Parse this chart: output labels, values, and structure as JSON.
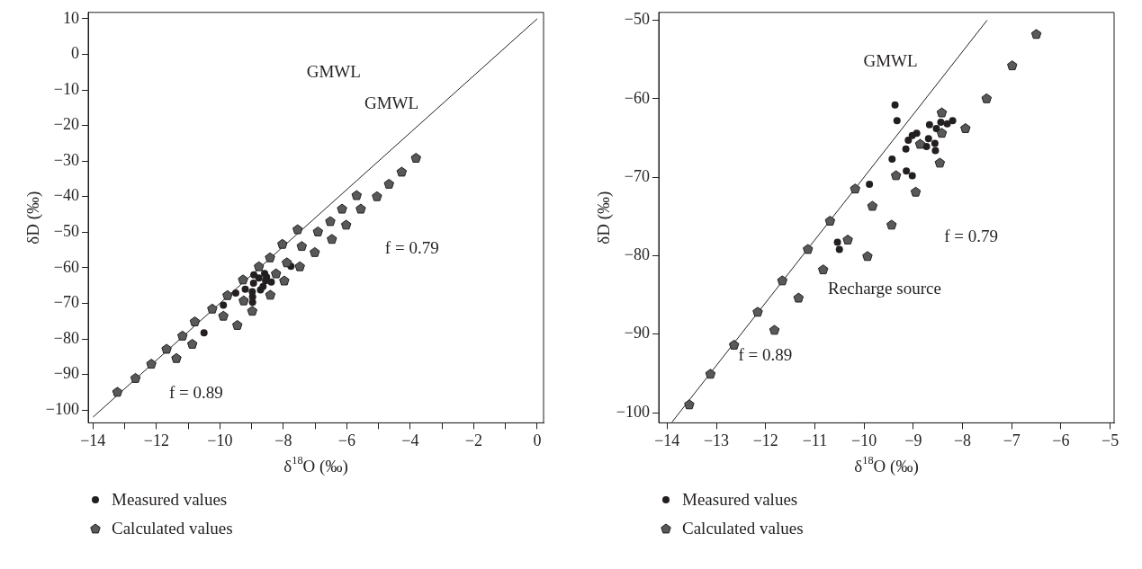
{
  "chart_data": [
    {
      "type": "scatter",
      "xlabel": "δ$^{18}$O (‰)",
      "ylabel": "δD (‰)",
      "xlim": [
        -14.15,
        0.2
      ],
      "ylim": [
        -103.6,
        11.8
      ],
      "xticks": [
        -14,
        {
          "value": -13,
          "label": null
        },
        -12,
        {
          "value": -11,
          "label": null
        },
        -10,
        {
          "value": -9,
          "label": null
        },
        -8,
        {
          "value": -7,
          "label": null
        },
        -6,
        {
          "value": -5,
          "label": null
        },
        -4,
        {
          "value": -3,
          "label": null
        },
        -2,
        {
          "value": -1,
          "label": null
        },
        0
      ],
      "yticks": [
        10,
        0,
        -10,
        -20,
        -30,
        -40,
        -50,
        -60,
        -70,
        -80,
        -90,
        -100
      ],
      "grid": false,
      "legend": "bottom",
      "series": [
        {
          "name": "Measured values",
          "type": "scatter",
          "marker": "circle",
          "color": "#231f20",
          "x": [
            -10.5,
            -9.89,
            -9.5,
            -9.2,
            -8.98,
            -8.97,
            -8.97,
            -8.93,
            -8.94,
            -8.77,
            -8.59,
            -8.53,
            -8.56,
            -8.72,
            -8.38,
            -7.76,
            -8.64
          ],
          "values": [
            -78.3,
            -70.5,
            -67.1,
            -66.0,
            -66.7,
            -68.2,
            -69.7,
            -62.0,
            -64.3,
            -62.9,
            -61.6,
            -62.6,
            -63.6,
            -66.2,
            -64.0,
            -59.6,
            -65.3
          ]
        },
        {
          "name": "Calculated values",
          "type": "scatter",
          "color": "#58595b",
          "x": [
            -13.23,
            -12.66,
            -12.16,
            -11.68,
            -11.37,
            -11.18,
            -10.87,
            -10.79,
            -10.24,
            -9.89,
            -9.76,
            -9.45,
            -9.27,
            -9.25,
            -8.98,
            -8.77,
            -8.41,
            -8.42,
            -8.23,
            -8.03,
            -7.97,
            -7.89,
            -7.55,
            -7.48,
            -7.42,
            -7.01,
            -6.91,
            -6.47,
            -6.52,
            -6.15,
            -6.02,
            -5.69,
            -5.56,
            -5.05,
            -4.67,
            -4.27,
            -3.82
          ],
          "values": [
            -95.0,
            -91.1,
            -87.1,
            -82.9,
            -85.5,
            -79.2,
            -81.5,
            -75.2,
            -71.6,
            -73.6,
            -67.8,
            -76.2,
            -63.4,
            -69.3,
            -72.2,
            -59.7,
            -67.7,
            -57.2,
            -61.7,
            -53.4,
            -63.7,
            -58.6,
            -49.3,
            -59.7,
            -54.0,
            -55.7,
            -49.9,
            -52.0,
            -47.0,
            -43.5,
            -48.0,
            -39.7,
            -43.5,
            -40.0,
            -36.5,
            -33.1,
            -29.2
          ]
        },
        {
          "type": "line",
          "marker": "none",
          "line_style": "solid",
          "color": "#231f20",
          "x": [
            -14,
            0
          ],
          "values": [
            -102,
            10
          ]
        }
      ],
      "annotations": [
        "GMWL",
        "GMWL",
        "f = 0.79",
        "f = 0.89"
      ]
    },
    {
      "type": "scatter",
      "xlabel": "δ$^{18}$O (‰)",
      "ylabel": "δD (‰)",
      "xlim": [
        -14.17,
        -4.92
      ],
      "ylim": [
        -101.3,
        -49.0
      ],
      "xticks": [
        -14,
        -13,
        -12,
        -11,
        -10,
        -9,
        -8,
        -7,
        -6,
        -5
      ],
      "yticks": [
        -50,
        -60,
        -70,
        -80,
        -90,
        -100
      ],
      "grid": false,
      "legend": "bottom",
      "series": [
        {
          "name": "Measured values",
          "type": "scatter",
          "marker": "circle",
          "color": "#231f20",
          "x": [
            -9.89,
            -10.54,
            -10.5,
            -9.37,
            -9.33,
            -9.43,
            -9.14,
            -9.02,
            -9.15,
            -9.1,
            -9.02,
            -8.93,
            -8.73,
            -8.69,
            -8.67,
            -8.56,
            -8.55,
            -8.53,
            -8.44,
            -8.31,
            -8.2
          ],
          "values": [
            -70.9,
            -78.3,
            -79.2,
            -60.8,
            -62.8,
            -67.7,
            -69.2,
            -69.8,
            -66.4,
            -65.3,
            -64.7,
            -64.4,
            -66.1,
            -65.1,
            -63.3,
            -65.7,
            -66.6,
            -63.8,
            -63.0,
            -63.2,
            -62.8
          ]
        },
        {
          "name": "Calculated values",
          "type": "scatter",
          "color": "#58595b",
          "x": [
            -13.55,
            -13.12,
            -12.64,
            -12.16,
            -11.82,
            -11.66,
            -11.33,
            -11.14,
            -10.83,
            -10.69,
            -10.33,
            -10.18,
            -9.93,
            -9.83,
            -9.44,
            -9.35,
            -8.95,
            -8.86,
            -8.46,
            -8.42,
            -8.42,
            -7.94,
            -7.51,
            -6.99,
            -6.5
          ],
          "values": [
            -99.0,
            -95.1,
            -91.4,
            -87.2,
            -89.5,
            -83.2,
            -85.4,
            -79.2,
            -81.8,
            -75.6,
            -78.0,
            -71.5,
            -80.1,
            -73.7,
            -76.1,
            -69.8,
            -71.9,
            -65.8,
            -68.2,
            -64.4,
            -61.8,
            -63.8,
            -60.0,
            -55.8,
            -51.8
          ]
        },
        {
          "type": "line",
          "marker": "none",
          "line_style": "solid",
          "color": "#231f20",
          "x": [
            -13.9,
            -7.5
          ],
          "values": [
            -101.2,
            -50
          ]
        }
      ],
      "annotations": [
        "GMWL",
        "f = 0.79",
        "f = 0.89",
        "Recharge source"
      ]
    }
  ]
}
